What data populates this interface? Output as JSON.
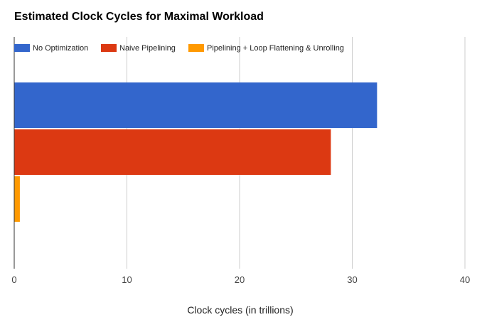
{
  "chart_data": {
    "type": "bar",
    "orientation": "horizontal",
    "title": "Estimated Clock Cycles for Maximal Workload",
    "xlabel": "Clock cycles (in trillions)",
    "ylabel": "",
    "xlim": [
      0,
      40
    ],
    "x_ticks": [
      0,
      10,
      20,
      30,
      40
    ],
    "grid": "vertical",
    "legend_position": "top",
    "series": [
      {
        "name": "No Optimization",
        "value": 32.2,
        "color": "#3366cc"
      },
      {
        "name": "Naive Pipelining",
        "value": 28.1,
        "color": "#dc3912"
      },
      {
        "name": "Pipelining + Loop Flattening & Unrolling",
        "value": 0.5,
        "color": "#ff9900"
      }
    ]
  }
}
